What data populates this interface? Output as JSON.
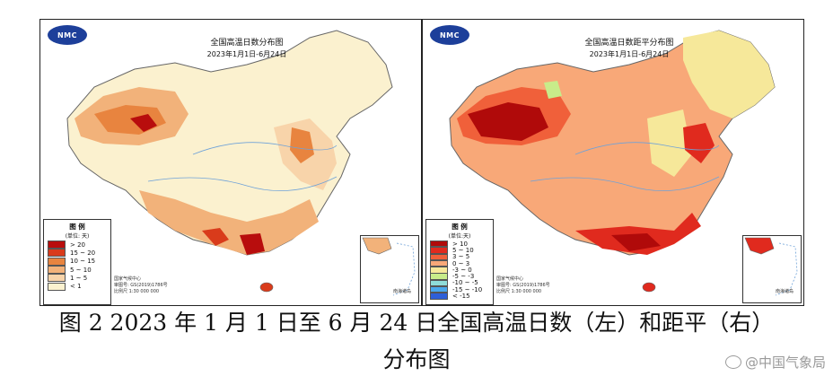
{
  "left_map": {
    "logo_text": "NMC",
    "title": "全国高温日数分布图",
    "date_range": "2023年1月1日-6月24日",
    "legend": {
      "title": "图 例",
      "unit": "(单位: 天)",
      "items": [
        {
          "label": "> 20",
          "color": "#b80d0d"
        },
        {
          "label": "15 ~ 20",
          "color": "#d93b1b"
        },
        {
          "label": "10 ~ 15",
          "color": "#e8843f"
        },
        {
          "label": "5 ~ 10",
          "color": "#f2b27a"
        },
        {
          "label": "1 ~ 5",
          "color": "#f8d4aa"
        },
        {
          "label": "< 1",
          "color": "#fbf1cf"
        }
      ]
    },
    "credit": [
      "国家气候中心",
      "审图号: GS(2019)1786号",
      "比例尺 1:30 000 000"
    ],
    "inset_label": "南海诸岛"
  },
  "right_map": {
    "logo_text": "NMC",
    "title": "全国高温日数距平分布图",
    "date_range": "2023年1月1日-6月24日",
    "legend": {
      "title": "图 例",
      "unit": "(单位:天)",
      "items": [
        {
          "label": "> 10",
          "color": "#b00a0a"
        },
        {
          "label": "5 ~ 10",
          "color": "#e02a1e"
        },
        {
          "label": "3 ~ 5",
          "color": "#f0603a"
        },
        {
          "label": "0 ~ 3",
          "color": "#f8a878"
        },
        {
          "label": "-3 ~ 0",
          "color": "#f6e89a"
        },
        {
          "label": "-5 ~ -3",
          "color": "#c8ec8a"
        },
        {
          "label": "-10 ~ -5",
          "color": "#8fdcd8"
        },
        {
          "label": "-15 ~ -10",
          "color": "#4aa8ec"
        },
        {
          "label": "< -15",
          "color": "#2e5fd8"
        }
      ]
    },
    "credit": [
      "国家气候中心",
      "审图号: GS(2019)1786号",
      "比例尺 1:30 000 000"
    ],
    "inset_label": "南海诸岛"
  },
  "caption": {
    "line1": "图 2 2023 年 1 月 1 日至 6 月 24 日全国高温日数（左）和距平（右）",
    "line2": "分布图"
  },
  "watermark": {
    "text": "@中国气象局",
    "icon": "weibo-icon"
  },
  "colors": {
    "border": "#222222",
    "china_outline": "#555555",
    "logo_blue": "#1d3f9a"
  }
}
